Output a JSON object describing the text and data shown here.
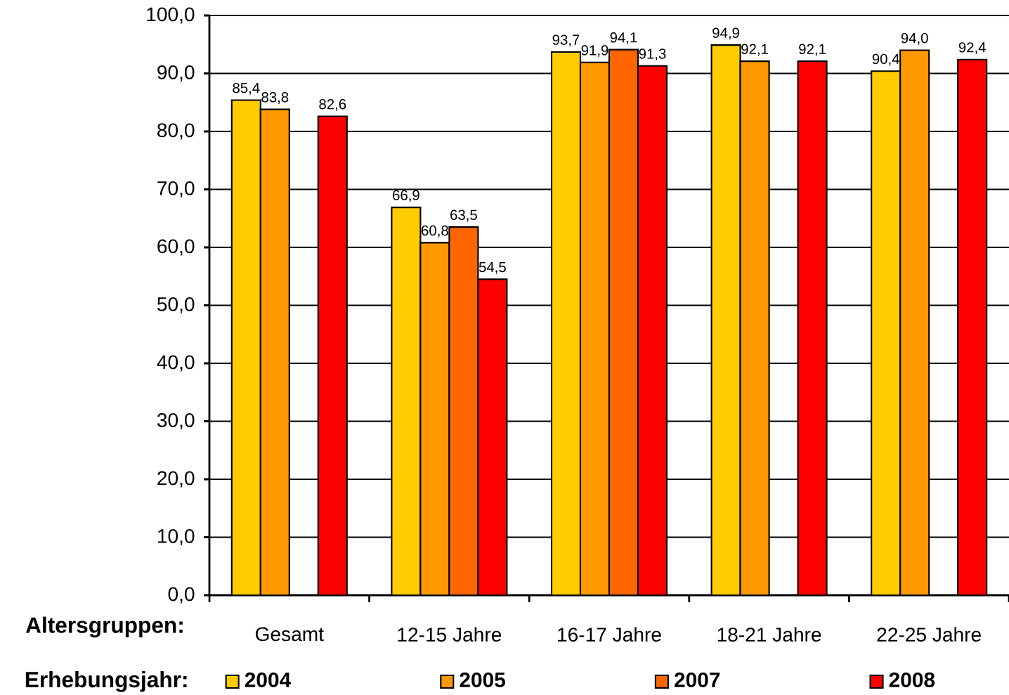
{
  "chart_data": {
    "type": "bar",
    "xlabel": "Altersgruppen:",
    "legend_title": "Erhebungsjahr:",
    "categories": [
      "Gesamt",
      "12-15 Jahre",
      "16-17 Jahre",
      "18-21 Jahre",
      "22-25 Jahre"
    ],
    "series": [
      {
        "name": "2004",
        "color": "#ffcc00",
        "values": [
          85.4,
          66.9,
          93.7,
          94.9,
          90.4
        ],
        "value_labels": [
          "85,4",
          "66,9",
          "93,7",
          "94,9",
          "90,4"
        ]
      },
      {
        "name": "2005",
        "color": "#ff9900",
        "values": [
          83.8,
          60.8,
          91.9,
          92.1,
          94.0
        ],
        "value_labels": [
          "83,8",
          "60,8",
          "91,9",
          "92,1",
          "94,0"
        ]
      },
      {
        "name": "2007",
        "color": "#ff6600",
        "values": [
          null,
          63.5,
          94.1,
          null,
          null
        ],
        "value_labels": [
          null,
          "63,5",
          "94,1",
          null,
          null
        ]
      },
      {
        "name": "2008",
        "color": "#ff0000",
        "values": [
          82.6,
          54.5,
          91.3,
          92.1,
          92.4
        ],
        "value_labels": [
          "82,6",
          "54,5",
          "91,3",
          "92,1",
          "92,4"
        ]
      }
    ],
    "ylim": [
      0,
      100
    ],
    "yticks": [
      {
        "value": 0,
        "label": "0,0"
      },
      {
        "value": 10,
        "label": "10,0"
      },
      {
        "value": 20,
        "label": "20,0"
      },
      {
        "value": 30,
        "label": "30,0"
      },
      {
        "value": 40,
        "label": "40,0"
      },
      {
        "value": 50,
        "label": "50,0"
      },
      {
        "value": 60,
        "label": "60,0"
      },
      {
        "value": 70,
        "label": "70,0"
      },
      {
        "value": 80,
        "label": "80,0"
      },
      {
        "value": 90,
        "label": "90,0"
      },
      {
        "value": 100,
        "label": "100,0"
      }
    ],
    "grid": "y",
    "legend": "bottom"
  }
}
